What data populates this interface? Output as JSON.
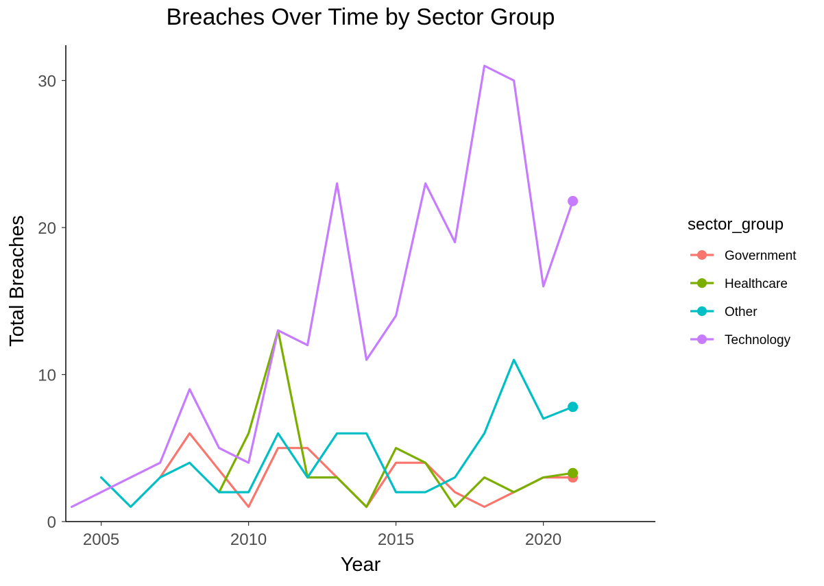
{
  "chart_data": {
    "type": "line",
    "title": "Breaches Over Time by Sector Group",
    "xlabel": "Year",
    "ylabel": "Total Breaches",
    "xlim": [
      2003.8,
      2023.8
    ],
    "ylim": [
      0,
      32.4
    ],
    "x_ticks": [
      2005,
      2010,
      2015,
      2020
    ],
    "y_ticks": [
      0,
      10,
      20,
      30
    ],
    "grid": false,
    "legend": {
      "title": "sector_group",
      "position": "right"
    },
    "series": [
      {
        "name": "Government",
        "color": "#F8766D",
        "x": [
          2007,
          2008,
          2010,
          2011,
          2012,
          2013,
          2014,
          2015,
          2016,
          2017,
          2018,
          2019,
          2020,
          2021
        ],
        "y": [
          3,
          6,
          1,
          5,
          5,
          3,
          1,
          4,
          4,
          2,
          1,
          2,
          3,
          3
        ],
        "end_point": [
          2021,
          3
        ]
      },
      {
        "name": "Healthcare",
        "color": "#7CAE00",
        "x": [
          2009,
          2010,
          2011,
          2012,
          2013,
          2014,
          2015,
          2016,
          2017,
          2018,
          2019,
          2020,
          2021
        ],
        "y": [
          2,
          6,
          13,
          3,
          3,
          1,
          5,
          4,
          1,
          3,
          2,
          3,
          3.3
        ],
        "end_point": [
          2021,
          3.3
        ]
      },
      {
        "name": "Other",
        "color": "#00BFC4",
        "x": [
          2005,
          2006,
          2007,
          2008,
          2009,
          2010,
          2011,
          2012,
          2013,
          2014,
          2015,
          2016,
          2017,
          2018,
          2019,
          2020,
          2021
        ],
        "y": [
          3,
          1,
          3,
          4,
          2,
          2,
          6,
          3,
          6,
          6,
          2,
          2,
          3,
          6,
          11,
          7,
          7.8
        ],
        "end_point": [
          2021,
          7.8
        ]
      },
      {
        "name": "Technology",
        "color": "#C77CFF",
        "x": [
          2004,
          2005,
          2006,
          2007,
          2008,
          2009,
          2010,
          2011,
          2012,
          2013,
          2014,
          2015,
          2016,
          2017,
          2018,
          2019,
          2020,
          2021
        ],
        "y": [
          1,
          2,
          3,
          4,
          9,
          5,
          4,
          13,
          12,
          23,
          11,
          14,
          23,
          19,
          31,
          30,
          16,
          21.8
        ],
        "end_point": [
          2021,
          21.8
        ]
      }
    ]
  }
}
